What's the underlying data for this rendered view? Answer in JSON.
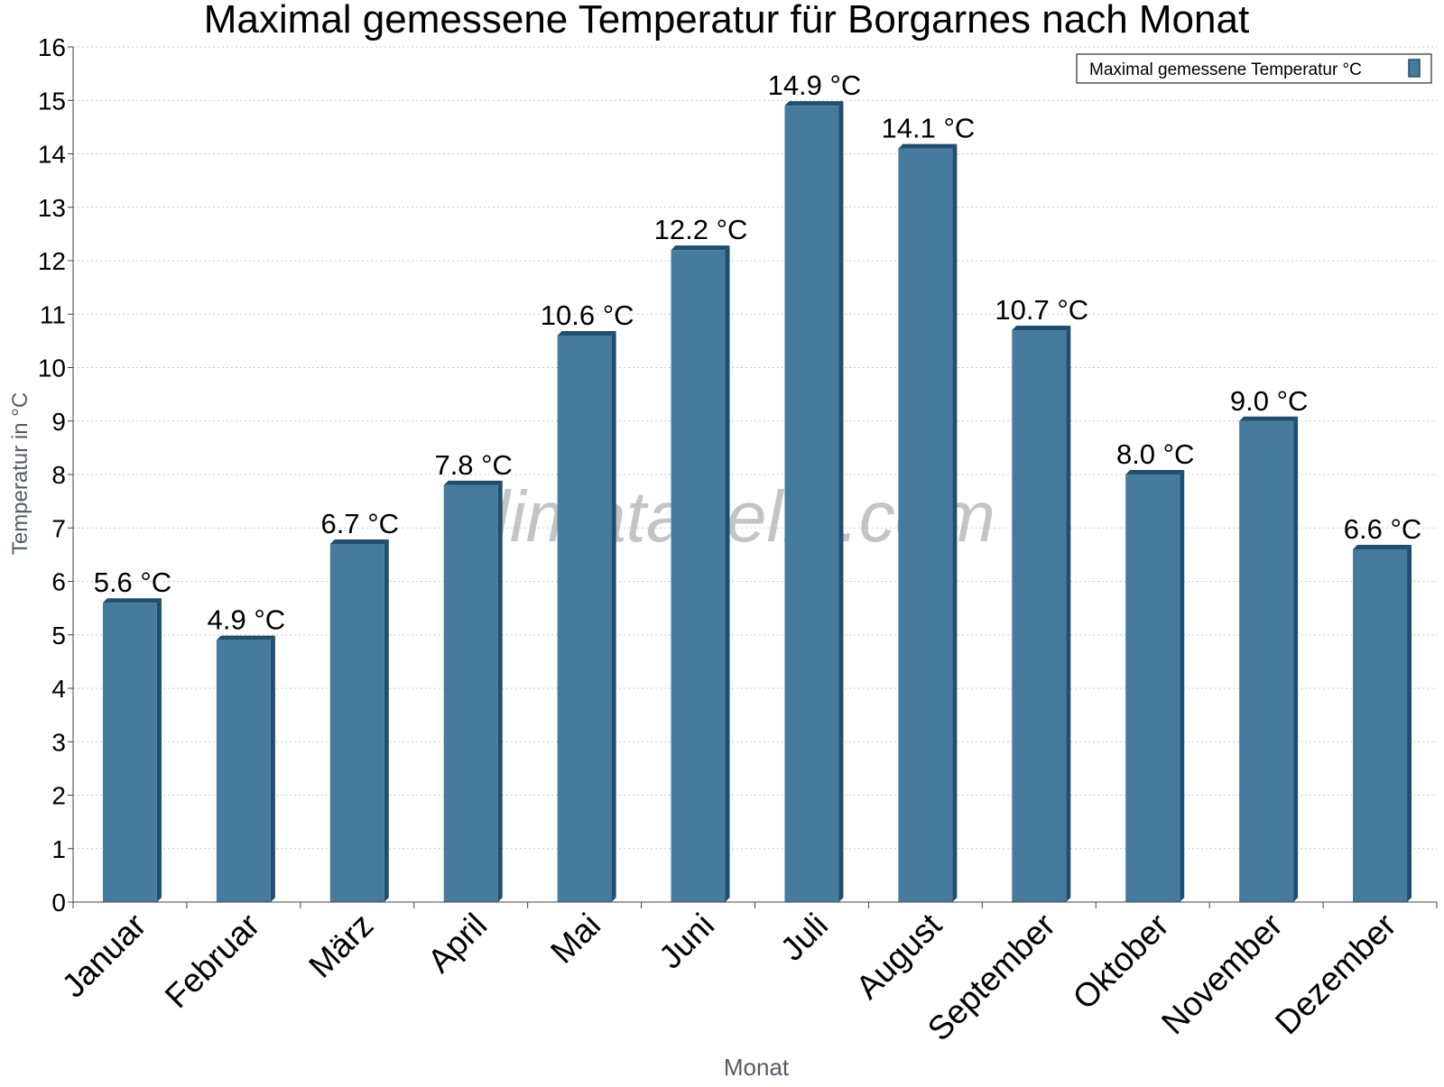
{
  "chart_data": {
    "type": "bar",
    "title": "Maximal gemessene Temperatur für Borgarnes nach Monat",
    "xlabel": "Monat",
    "ylabel": "Temperatur in °C",
    "categories": [
      "Januar",
      "Februar",
      "März",
      "April",
      "Mai",
      "Juni",
      "Juli",
      "August",
      "September",
      "Oktober",
      "November",
      "Dezember"
    ],
    "series": [
      {
        "name": "Maximal gemessene Temperatur °C",
        "values": [
          5.6,
          4.9,
          6.7,
          7.8,
          10.6,
          12.2,
          14.9,
          14.1,
          10.7,
          8.0,
          9.0,
          6.6
        ],
        "labels": [
          "5.6 °C",
          "4.9 °C",
          "6.7 °C",
          "7.8 °C",
          "10.6 °C",
          "12.2 °C",
          "14.9 °C",
          "14.1 °C",
          "10.7 °C",
          "8.0 °C",
          "9.0 °C",
          "6.6 °C"
        ],
        "color": "#467b9d",
        "edge_color": "#1f4e6e"
      }
    ],
    "ylim": [
      0,
      16
    ],
    "yticks": [
      0,
      1,
      2,
      3,
      4,
      5,
      6,
      7,
      8,
      9,
      10,
      11,
      12,
      13,
      14,
      15,
      16
    ],
    "grid": true,
    "legend": "top-right",
    "watermark": "klimatabelle.com"
  }
}
